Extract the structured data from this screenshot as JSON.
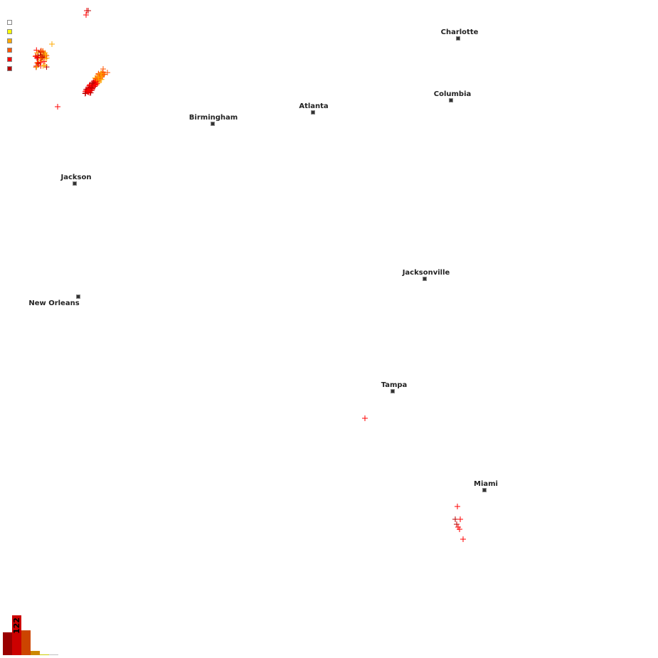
{
  "legend": {
    "colors": [
      "#ffffff",
      "#ffff00",
      "#ffaa00",
      "#ff5500",
      "#ff0000",
      "#bb0000"
    ]
  },
  "cities": [
    {
      "name": "Charlotte"
    },
    {
      "name": "Columbia"
    },
    {
      "name": "Atlanta"
    },
    {
      "name": "Birmingham"
    },
    {
      "name": "Jackson"
    },
    {
      "name": "Jacksonville"
    },
    {
      "name": "New Orleans"
    },
    {
      "name": "Tampa"
    },
    {
      "name": "Miami"
    }
  ],
  "histogram": {
    "max_label": "122",
    "values": [
      70,
      122,
      76,
      13,
      2,
      2
    ],
    "colors": [
      "#990000",
      "#cc0000",
      "#cc4400",
      "#cc8800",
      "#cccc00",
      "#c0c0c0"
    ]
  },
  "strike_color_classes": [
    "#ffaa00",
    "#ff5500",
    "#ff0000",
    "#bb0000"
  ]
}
